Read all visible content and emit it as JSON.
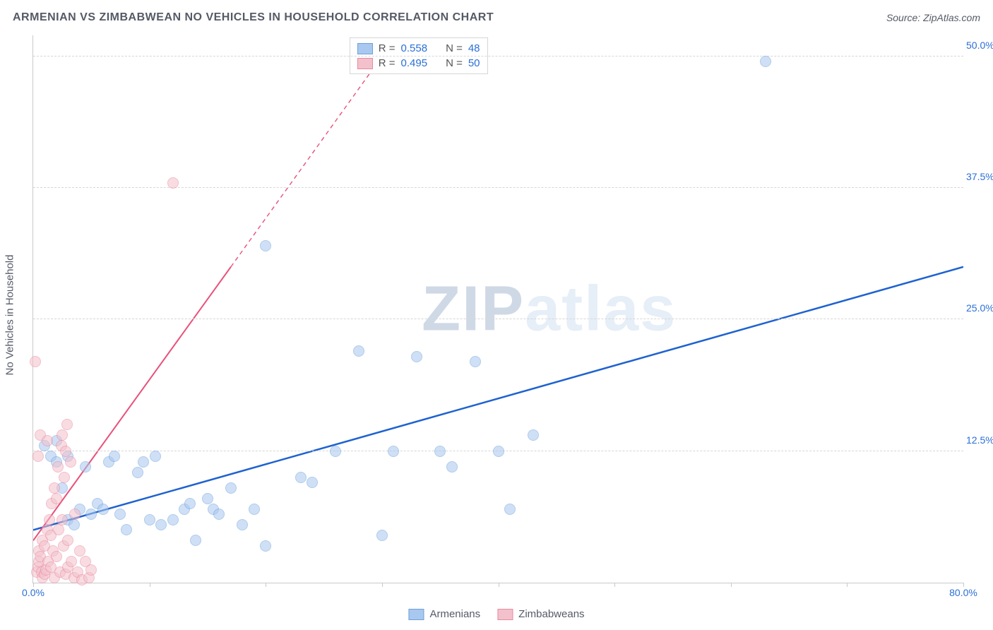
{
  "title": "ARMENIAN VS ZIMBABWEAN NO VEHICLES IN HOUSEHOLD CORRELATION CHART",
  "source_label": "Source:",
  "source_name": "ZipAtlas.com",
  "y_axis_label": "No Vehicles in Household",
  "watermark_a": "ZIP",
  "watermark_b": "atlas",
  "chart": {
    "type": "scatter",
    "xlim": [
      0,
      80
    ],
    "ylim": [
      0,
      52
    ],
    "x_ticks": [
      0,
      10,
      20,
      30,
      40,
      50,
      60,
      70,
      80
    ],
    "x_tick_labels": {
      "0": "0.0%",
      "80": "80.0%"
    },
    "y_ticks": [
      12.5,
      25.0,
      37.5,
      50.0
    ],
    "y_tick_labels": [
      "12.5%",
      "25.0%",
      "37.5%",
      "50.0%"
    ],
    "x_label_color": "#2b6fd6",
    "y_label_color": "#2b6fd6",
    "grid_color": "#d6d6d6",
    "background_color": "#ffffff",
    "point_radius": 8,
    "point_opacity": 0.55,
    "series": [
      {
        "name": "Armenians",
        "fill": "#a9c8ef",
        "stroke": "#6ea0db",
        "trend_color": "#1e62d0",
        "trend_width": 2.5,
        "trend": {
          "x1": 0,
          "y1": 5.0,
          "x2": 80,
          "y2": 30.0,
          "dash_after_x": 80
        },
        "r_value": "0.558",
        "n_value": "48",
        "points": [
          [
            1,
            13
          ],
          [
            1.5,
            12
          ],
          [
            2,
            11.5
          ],
          [
            2,
            13.5
          ],
          [
            2.5,
            9
          ],
          [
            3,
            12
          ],
          [
            3,
            6
          ],
          [
            3.5,
            5.5
          ],
          [
            4,
            7
          ],
          [
            4.5,
            11
          ],
          [
            5,
            6.5
          ],
          [
            5.5,
            7.5
          ],
          [
            6,
            7
          ],
          [
            6.5,
            11.5
          ],
          [
            7,
            12
          ],
          [
            7.5,
            6.5
          ],
          [
            8,
            5
          ],
          [
            9,
            10.5
          ],
          [
            9.5,
            11.5
          ],
          [
            10,
            6
          ],
          [
            10.5,
            12
          ],
          [
            11,
            5.5
          ],
          [
            12,
            6
          ],
          [
            13,
            7
          ],
          [
            13.5,
            7.5
          ],
          [
            14,
            4
          ],
          [
            15,
            8
          ],
          [
            15.5,
            7
          ],
          [
            16,
            6.5
          ],
          [
            17,
            9
          ],
          [
            18,
            5.5
          ],
          [
            19,
            7
          ],
          [
            20,
            3.5
          ],
          [
            23,
            10
          ],
          [
            24,
            9.5
          ],
          [
            26,
            12.5
          ],
          [
            28,
            22
          ],
          [
            30,
            4.5
          ],
          [
            31,
            12.5
          ],
          [
            33,
            21.5
          ],
          [
            35,
            12.5
          ],
          [
            36,
            11
          ],
          [
            38,
            21
          ],
          [
            40,
            12.5
          ],
          [
            41,
            7
          ],
          [
            43,
            14
          ],
          [
            63,
            49.5
          ],
          [
            20,
            32
          ]
        ]
      },
      {
        "name": "Zimbabweans",
        "fill": "#f3c1cb",
        "stroke": "#e88aa0",
        "trend_color": "#e8517a",
        "trend_width": 2,
        "trend": {
          "x1": 0,
          "y1": 4.0,
          "x2": 17,
          "y2": 30.0,
          "dash_after_x": 17,
          "x3": 30,
          "y3": 50
        },
        "r_value": "0.495",
        "n_value": "50",
        "points": [
          [
            0.3,
            1
          ],
          [
            0.4,
            1.5
          ],
          [
            0.5,
            2
          ],
          [
            0.5,
            3
          ],
          [
            0.6,
            2.5
          ],
          [
            0.7,
            1
          ],
          [
            0.8,
            4
          ],
          [
            0.8,
            0.5
          ],
          [
            1,
            0.8
          ],
          [
            1,
            3.5
          ],
          [
            1.1,
            1.2
          ],
          [
            1.2,
            5
          ],
          [
            1.3,
            2
          ],
          [
            1.4,
            6
          ],
          [
            1.5,
            4.5
          ],
          [
            1.5,
            1.5
          ],
          [
            1.6,
            7.5
          ],
          [
            1.7,
            3
          ],
          [
            1.8,
            9
          ],
          [
            1.8,
            0.5
          ],
          [
            2,
            8
          ],
          [
            2,
            2.5
          ],
          [
            2.1,
            11
          ],
          [
            2.2,
            5
          ],
          [
            2.3,
            1
          ],
          [
            2.4,
            13
          ],
          [
            2.5,
            6
          ],
          [
            2.5,
            14
          ],
          [
            2.6,
            3.5
          ],
          [
            2.7,
            10
          ],
          [
            2.8,
            0.8
          ],
          [
            2.9,
            15
          ],
          [
            3,
            4
          ],
          [
            3,
            1.5
          ],
          [
            3.2,
            11.5
          ],
          [
            3.3,
            2
          ],
          [
            3.5,
            0.5
          ],
          [
            3.6,
            6.5
          ],
          [
            3.8,
            1
          ],
          [
            4,
            3
          ],
          [
            4.2,
            0.3
          ],
          [
            4.5,
            2
          ],
          [
            4.8,
            0.5
          ],
          [
            5,
            1.2
          ],
          [
            0.2,
            21
          ],
          [
            0.4,
            12
          ],
          [
            0.6,
            14
          ],
          [
            1.2,
            13.5
          ],
          [
            12,
            38
          ],
          [
            2.8,
            12.5
          ]
        ]
      }
    ]
  },
  "legend_top": {
    "r_label": "R =",
    "n_label": "N ="
  },
  "legend_bottom": {
    "items": [
      "Armenians",
      "Zimbabweans"
    ]
  }
}
